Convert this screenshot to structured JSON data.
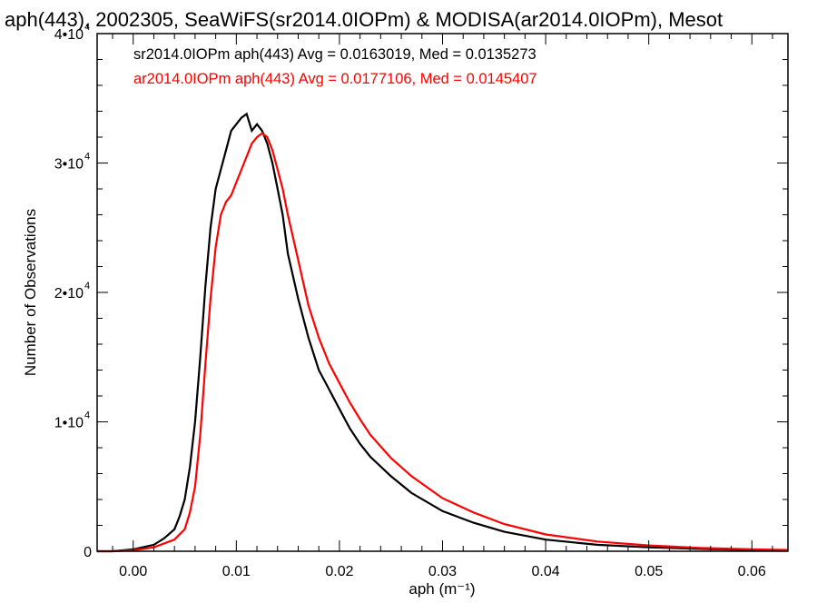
{
  "chart_data": {
    "type": "line",
    "title": "aph(443), 2002305, SeaWiFS(sr2014.0IOPm) & MODISA(ar2014.0IOPm), Mesot",
    "xlabel": "aph (m⁻¹)",
    "ylabel": "Number of Observations",
    "xlim": [
      -0.0035,
      0.0635
    ],
    "ylim": [
      0,
      40000
    ],
    "x_ticks": [
      {
        "value": 0.0,
        "label": "0.00"
      },
      {
        "value": 0.01,
        "label": "0.01"
      },
      {
        "value": 0.02,
        "label": "0.02"
      },
      {
        "value": 0.03,
        "label": "0.03"
      },
      {
        "value": 0.04,
        "label": "0.04"
      },
      {
        "value": 0.05,
        "label": "0.05"
      },
      {
        "value": 0.06,
        "label": "0.06"
      }
    ],
    "y_ticks": [
      {
        "value": 0,
        "mantissa": "0",
        "exponent": ""
      },
      {
        "value": 10000,
        "mantissa": "1•10",
        "exponent": "4"
      },
      {
        "value": 20000,
        "mantissa": "2•10",
        "exponent": "4"
      },
      {
        "value": 30000,
        "mantissa": "3•10",
        "exponent": "4"
      },
      {
        "value": 40000,
        "mantissa": "4•10",
        "exponent": "4"
      }
    ],
    "legend_position": "top-left",
    "grid": false,
    "series": [
      {
        "name": "sr2014.0IOPm aph(443) Avg = 0.0163019, Med = 0.0135273",
        "color": "#000000",
        "x": [
          -0.0035,
          -0.002,
          0.0,
          0.002,
          0.003,
          0.004,
          0.0045,
          0.005,
          0.0055,
          0.006,
          0.0065,
          0.007,
          0.0075,
          0.008,
          0.0085,
          0.009,
          0.0095,
          0.01,
          0.0105,
          0.011,
          0.0115,
          0.012,
          0.0125,
          0.013,
          0.0135,
          0.014,
          0.0145,
          0.015,
          0.016,
          0.017,
          0.018,
          0.019,
          0.02,
          0.021,
          0.022,
          0.023,
          0.025,
          0.027,
          0.03,
          0.033,
          0.036,
          0.04,
          0.045,
          0.05,
          0.055,
          0.06,
          0.0635
        ],
        "y": [
          0,
          0,
          150,
          500,
          1000,
          1700,
          2700,
          4000,
          6500,
          10000,
          15000,
          20500,
          25000,
          28000,
          29500,
          31000,
          32500,
          33000,
          33500,
          33800,
          32500,
          33000,
          32500,
          31500,
          30000,
          28000,
          26000,
          23000,
          19500,
          16500,
          14000,
          12500,
          11000,
          9500,
          8300,
          7300,
          5800,
          4500,
          3100,
          2200,
          1500,
          900,
          500,
          300,
          180,
          100,
          60
        ]
      },
      {
        "name": "ar2014.0IOPm aph(443) Avg = 0.0177106, Med = 0.0145407",
        "color": "#ff0000",
        "x": [
          -0.0035,
          -0.002,
          0.0,
          0.002,
          0.004,
          0.005,
          0.0055,
          0.006,
          0.0065,
          0.007,
          0.0075,
          0.008,
          0.0085,
          0.009,
          0.0095,
          0.01,
          0.0105,
          0.011,
          0.0115,
          0.012,
          0.0125,
          0.013,
          0.0135,
          0.014,
          0.0145,
          0.015,
          0.016,
          0.017,
          0.018,
          0.019,
          0.02,
          0.021,
          0.022,
          0.023,
          0.025,
          0.027,
          0.03,
          0.033,
          0.036,
          0.04,
          0.045,
          0.05,
          0.055,
          0.06,
          0.0635
        ],
        "y": [
          0,
          0,
          80,
          300,
          900,
          1700,
          3000,
          5000,
          9000,
          14500,
          19500,
          23500,
          26000,
          27000,
          27500,
          28500,
          29500,
          30500,
          31500,
          32000,
          32300,
          32000,
          31000,
          29500,
          28000,
          26000,
          22500,
          19000,
          16500,
          14500,
          13000,
          11500,
          10200,
          9000,
          7200,
          5800,
          4100,
          3000,
          2100,
          1300,
          750,
          450,
          250,
          150,
          100
        ]
      }
    ]
  }
}
